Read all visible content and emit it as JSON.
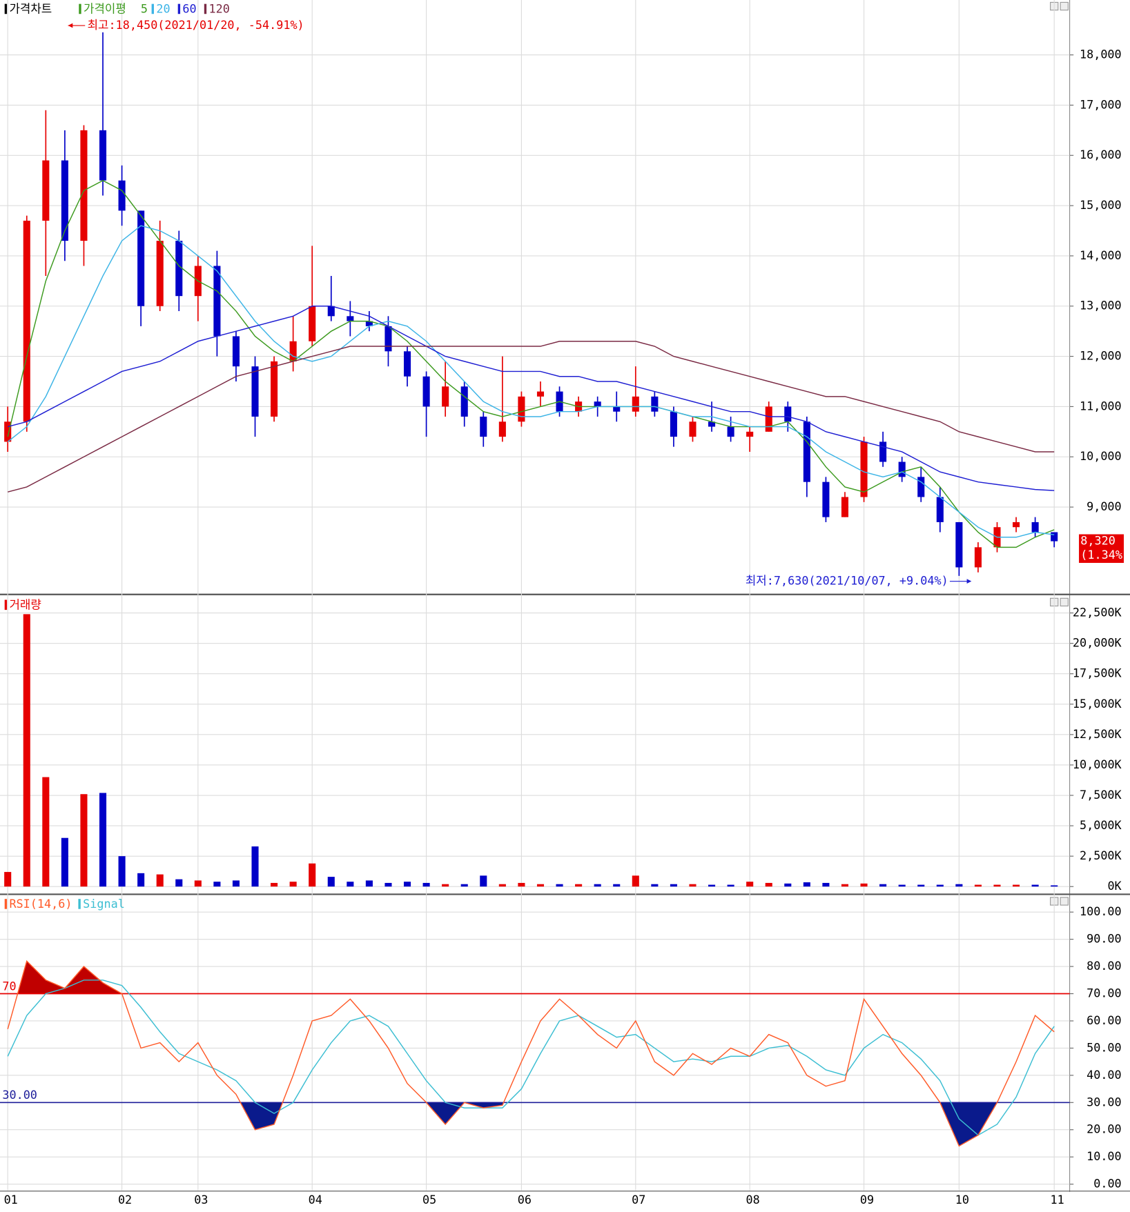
{
  "chart_data": [
    {
      "type": "candlestick",
      "title": "가격차트",
      "ma_title": "가격이평",
      "ylim": [
        7277,
        19092
      ],
      "yticks": [
        {
          "value": 9000,
          "label": "9,000"
        },
        {
          "value": 10000,
          "label": "10,000"
        },
        {
          "value": 11000,
          "label": "11,000"
        },
        {
          "value": 12000,
          "label": "12,000"
        },
        {
          "value": 13000,
          "label": "13,000"
        },
        {
          "value": 14000,
          "label": "14,000"
        },
        {
          "value": 15000,
          "label": "15,000"
        },
        {
          "value": 16000,
          "label": "16,000"
        },
        {
          "value": 17000,
          "label": "17,000"
        },
        {
          "value": 18000,
          "label": "18,000"
        }
      ],
      "grid": true,
      "up_color": "#e60000",
      "down_color": "#0000c8",
      "open": [
        10300,
        10700,
        14700,
        15900,
        14300,
        16500,
        15500,
        14900,
        13000,
        14300,
        13200,
        13800,
        12400,
        11800,
        10800,
        11900,
        12300,
        13000,
        12800,
        12700,
        12600,
        12100,
        11600,
        11000,
        11400,
        10800,
        10400,
        10700,
        11200,
        11300,
        10900,
        11100,
        11000,
        10900,
        11200,
        10900,
        10400,
        10700,
        10600,
        10400,
        10500,
        11000,
        10700,
        9500,
        8800,
        9200,
        10300,
        9900,
        9600,
        9200,
        8700,
        7800,
        8200,
        8600,
        8700,
        8500
      ],
      "high": [
        11000,
        14800,
        16900,
        16500,
        16600,
        18450,
        15800,
        14900,
        14700,
        14500,
        14000,
        14100,
        12500,
        12000,
        12000,
        12800,
        14200,
        13600,
        13100,
        12900,
        12800,
        12200,
        11700,
        11900,
        11500,
        10900,
        12000,
        11300,
        11500,
        11400,
        11200,
        11200,
        11300,
        11800,
        11300,
        11000,
        10800,
        11100,
        10800,
        10600,
        11100,
        11100,
        10800,
        9600,
        9300,
        10400,
        10500,
        10000,
        9800,
        9400,
        8700,
        8300,
        8700,
        8800,
        8800,
        8500
      ],
      "low": [
        10100,
        10500,
        13600,
        13900,
        13800,
        15200,
        14600,
        12600,
        12900,
        12900,
        12700,
        12000,
        11500,
        10400,
        10700,
        11700,
        12200,
        12700,
        12400,
        12500,
        11800,
        11400,
        10400,
        10800,
        10600,
        10200,
        10300,
        10600,
        11000,
        10800,
        10800,
        10800,
        10700,
        10800,
        10800,
        10200,
        10300,
        10500,
        10300,
        10100,
        10500,
        10500,
        9200,
        8700,
        8800,
        9100,
        9800,
        9500,
        9100,
        8500,
        7630,
        7700,
        8100,
        8500,
        8400,
        8200
      ],
      "close": [
        10700,
        14700,
        15900,
        14300,
        16500,
        15500,
        14900,
        13000,
        14300,
        13200,
        13800,
        12400,
        11800,
        10800,
        11900,
        12300,
        13000,
        12800,
        12700,
        12600,
        12100,
        11600,
        11000,
        11400,
        10800,
        10400,
        10700,
        11200,
        11300,
        10900,
        11100,
        11000,
        10900,
        11200,
        10900,
        10400,
        10700,
        10600,
        10400,
        10500,
        11000,
        10700,
        9500,
        8800,
        9200,
        10300,
        9900,
        9600,
        9200,
        8700,
        7800,
        8200,
        8600,
        8700,
        8500,
        8320
      ],
      "series": [
        {
          "name": "5",
          "color": "#3c9a1e",
          "values": [
            10400,
            12000,
            13500,
            14500,
            15300,
            15500,
            15300,
            14800,
            14300,
            13800,
            13500,
            13300,
            12900,
            12400,
            12100,
            11900,
            12200,
            12500,
            12700,
            12700,
            12600,
            12300,
            11900,
            11500,
            11200,
            10900,
            10800,
            10900,
            11000,
            11100,
            11000,
            11000,
            11000,
            11000,
            11000,
            10900,
            10800,
            10700,
            10600,
            10600,
            10600,
            10700,
            10300,
            9800,
            9400,
            9300,
            9500,
            9700,
            9800,
            9400,
            8900,
            8500,
            8200,
            8200,
            8400,
            8550
          ]
        },
        {
          "name": "20",
          "color": "#3cb4e6",
          "values": [
            10300,
            10600,
            11200,
            12000,
            12800,
            13600,
            14300,
            14600,
            14500,
            14300,
            14000,
            13700,
            13200,
            12700,
            12300,
            12000,
            11900,
            12000,
            12300,
            12600,
            12700,
            12600,
            12300,
            11900,
            11500,
            11100,
            10900,
            10800,
            10800,
            10900,
            10900,
            11000,
            11000,
            11000,
            11000,
            10900,
            10800,
            10800,
            10700,
            10600,
            10600,
            10600,
            10400,
            10100,
            9900,
            9700,
            9600,
            9700,
            9500,
            9200,
            8900,
            8600,
            8400,
            8400,
            8500,
            8450
          ]
        },
        {
          "name": "60",
          "color": "#1e1ed2",
          "values": [
            10600,
            10700,
            10900,
            11100,
            11300,
            11500,
            11700,
            11800,
            11900,
            12100,
            12300,
            12400,
            12500,
            12600,
            12700,
            12800,
            13000,
            13000,
            12900,
            12800,
            12600,
            12400,
            12200,
            12000,
            11900,
            11800,
            11700,
            11700,
            11700,
            11600,
            11600,
            11500,
            11500,
            11400,
            11300,
            11200,
            11100,
            11000,
            10900,
            10900,
            10800,
            10800,
            10700,
            10500,
            10400,
            10300,
            10200,
            10100,
            9900,
            9700,
            9600,
            9500,
            9450,
            9400,
            9350,
            9330
          ]
        },
        {
          "name": "120",
          "color": "#7a2a44",
          "values": [
            9300,
            9400,
            9600,
            9800,
            10000,
            10200,
            10400,
            10600,
            10800,
            11000,
            11200,
            11400,
            11600,
            11700,
            11800,
            11900,
            12000,
            12100,
            12200,
            12200,
            12200,
            12200,
            12200,
            12200,
            12200,
            12200,
            12200,
            12200,
            12200,
            12300,
            12300,
            12300,
            12300,
            12300,
            12200,
            12000,
            11900,
            11800,
            11700,
            11600,
            11500,
            11400,
            11300,
            11200,
            11200,
            11100,
            11000,
            10900,
            10800,
            10700,
            10500,
            10400,
            10300,
            10200,
            10100,
            10100
          ]
        }
      ],
      "annotations": [
        {
          "text": "최고:18,450(2021/01/20, -54.91%)",
          "color": "#e60000"
        },
        {
          "text": "최저:7,630(2021/10/07, +9.04%)",
          "color": "#1e1ed2"
        }
      ],
      "last_price": {
        "value": 8320,
        "label": "8,320"
      },
      "last_change": "(1.34%)"
    },
    {
      "type": "bar",
      "title": "거래량",
      "ylim": [
        -636,
        23835
      ],
      "yticks": [
        {
          "value": 0,
          "label": "0K"
        },
        {
          "value": 2500,
          "label": "2,500K"
        },
        {
          "value": 5000,
          "label": "5,000K"
        },
        {
          "value": 7500,
          "label": "7,500K"
        },
        {
          "value": 10000,
          "label": "10,000K"
        },
        {
          "value": 12500,
          "label": "12,500K"
        },
        {
          "value": 15000,
          "label": "15,000K"
        },
        {
          "value": 17500,
          "label": "17,500K"
        },
        {
          "value": 20000,
          "label": "20,000K"
        },
        {
          "value": 22500,
          "label": "22,500K"
        }
      ],
      "grid": true,
      "values": [
        1200,
        22400,
        9000,
        4000,
        7600,
        7700,
        2500,
        1100,
        1000,
        600,
        500,
        400,
        500,
        3300,
        300,
        400,
        1900,
        800,
        400,
        500,
        300,
        400,
        300,
        200,
        200,
        900,
        200,
        300,
        200,
        200,
        200,
        200,
        200,
        900,
        200,
        200,
        200,
        150,
        150,
        400,
        300,
        250,
        350,
        300,
        200,
        250,
        200,
        150,
        150,
        150,
        200,
        150,
        150,
        150,
        150,
        100
      ]
    },
    {
      "type": "line",
      "ylim": [
        -2.27,
        105.68
      ],
      "yticks": [
        {
          "value": 0,
          "label": "0.00"
        },
        {
          "value": 10,
          "label": "10.00"
        },
        {
          "value": 20,
          "label": "20.00"
        },
        {
          "value": 30,
          "label": "30.00"
        },
        {
          "value": 40,
          "label": "40.00"
        },
        {
          "value": 50,
          "label": "50.00"
        },
        {
          "value": 60,
          "label": "60.00"
        },
        {
          "value": 70,
          "label": "70.00"
        },
        {
          "value": 80,
          "label": "80.00"
        },
        {
          "value": 90,
          "label": "90.00"
        },
        {
          "value": 100,
          "label": "100.00"
        }
      ],
      "grid": true,
      "categories": [
        "01",
        null,
        null,
        null,
        null,
        null,
        "02",
        null,
        null,
        null,
        "03",
        null,
        null,
        null,
        null,
        null,
        "04",
        null,
        null,
        null,
        null,
        null,
        "05",
        null,
        null,
        null,
        null,
        "06",
        null,
        null,
        null,
        null,
        null,
        "07",
        null,
        null,
        null,
        null,
        null,
        "08",
        null,
        null,
        null,
        null,
        null,
        "09",
        null,
        null,
        null,
        null,
        "10",
        null,
        null,
        null,
        null,
        "11"
      ],
      "series": [
        {
          "name": "RSI(14,6)",
          "color": "#ff5a28",
          "values": [
            57,
            82,
            75,
            72,
            80,
            74,
            70,
            50,
            52,
            45,
            52,
            40,
            33,
            20,
            22,
            40,
            60,
            62,
            68,
            60,
            50,
            37,
            30,
            22,
            30,
            28,
            29,
            45,
            60,
            68,
            62,
            55,
            50,
            60,
            45,
            40,
            48,
            44,
            50,
            47,
            55,
            52,
            40,
            36,
            38,
            68,
            58,
            48,
            40,
            30,
            14,
            18,
            30,
            45,
            62,
            56
          ]
        },
        {
          "name": "Signal",
          "color": "#3cbed2",
          "values": [
            47,
            62,
            70,
            72,
            75,
            75,
            73,
            65,
            56,
            48,
            45,
            42,
            38,
            30,
            26,
            30,
            42,
            52,
            60,
            62,
            58,
            48,
            38,
            30,
            28,
            28,
            28,
            35,
            48,
            60,
            62,
            58,
            54,
            55,
            50,
            45,
            46,
            45,
            47,
            47,
            50,
            51,
            47,
            42,
            40,
            50,
            55,
            52,
            46,
            38,
            24,
            18,
            22,
            32,
            48,
            58
          ]
        }
      ],
      "levels": [
        {
          "value": 70,
          "label": "70",
          "color": "#e60000",
          "fill": "#c00000"
        },
        {
          "value": 30,
          "label": "30.00",
          "color": "#1e1e9a",
          "fill": "#0a1a8c"
        }
      ]
    }
  ]
}
